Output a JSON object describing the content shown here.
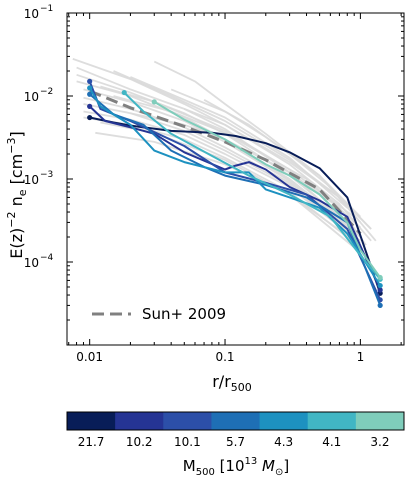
{
  "chart_data": {
    "type": "line",
    "xlabel": {
      "base": "r/r",
      "sub": "500"
    },
    "ylabel": {
      "pre": "E(z)",
      "sup1": "−2",
      "mid": " n",
      "sub": "e",
      "post": " [cm",
      "sup2": "−3",
      "end": "]"
    },
    "xscale": "log",
    "yscale": "log",
    "xlim": [
      0.0068,
      2.1
    ],
    "ylim": [
      1e-05,
      0.1
    ],
    "xticks": [
      {
        "value": 0.01,
        "label": "0.01"
      },
      {
        "value": 0.1,
        "label": "0.1"
      },
      {
        "value": 1,
        "label": "1"
      }
    ],
    "yticks": [
      {
        "value": 0.0001,
        "mant": "10",
        "exp": "−4"
      },
      {
        "value": 0.001,
        "mant": "10",
        "exp": "−3"
      },
      {
        "value": 0.01,
        "mant": "10",
        "exp": "−2"
      },
      {
        "value": 0.1,
        "mant": "10",
        "exp": "−1"
      }
    ],
    "legend": {
      "position": "lower-left",
      "entries": [
        {
          "label": "Sun+ 2009",
          "style": "dashed",
          "color": "#808080"
        }
      ]
    },
    "reference_profile": {
      "name": "Sun+ 2009",
      "color": "#808080",
      "points": [
        [
          0.01,
          0.0115
        ],
        [
          0.02,
          0.0072
        ],
        [
          0.05,
          0.0043
        ],
        [
          0.1,
          0.0028
        ],
        [
          0.2,
          0.0017
        ],
        [
          0.5,
          0.00075
        ],
        [
          1.0,
          0.00022
        ]
      ]
    },
    "background_profiles": {
      "color": "#d9d9d9",
      "profiles": [
        [
          [
            0.0075,
            0.028
          ],
          [
            0.02,
            0.016
          ],
          [
            0.05,
            0.008
          ],
          [
            0.1,
            0.0045
          ],
          [
            0.3,
            0.0015
          ],
          [
            0.7,
            0.0005
          ],
          [
            1.2,
            0.00018
          ]
        ],
        [
          [
            0.008,
            0.022
          ],
          [
            0.02,
            0.012
          ],
          [
            0.05,
            0.007
          ],
          [
            0.1,
            0.004
          ],
          [
            0.3,
            0.0012
          ],
          [
            0.7,
            0.00045
          ],
          [
            1.1,
            0.00016
          ]
        ],
        [
          [
            0.008,
            0.018
          ],
          [
            0.02,
            0.011
          ],
          [
            0.05,
            0.0062
          ],
          [
            0.1,
            0.0035
          ],
          [
            0.3,
            0.0011
          ],
          [
            0.8,
            0.0003
          ]
        ],
        [
          [
            0.008,
            0.015
          ],
          [
            0.02,
            0.01
          ],
          [
            0.05,
            0.0055
          ],
          [
            0.1,
            0.003
          ],
          [
            0.3,
            0.001
          ],
          [
            0.8,
            0.00028
          ]
        ],
        [
          [
            0.009,
            0.012
          ],
          [
            0.02,
            0.0085
          ],
          [
            0.05,
            0.005
          ],
          [
            0.1,
            0.0028
          ],
          [
            0.3,
            0.00095
          ],
          [
            0.9,
            0.00022
          ]
        ],
        [
          [
            0.009,
            0.0095
          ],
          [
            0.02,
            0.007
          ],
          [
            0.05,
            0.0042
          ],
          [
            0.1,
            0.0024
          ],
          [
            0.3,
            0.0009
          ],
          [
            0.9,
            0.00023
          ]
        ],
        [
          [
            0.009,
            0.008
          ],
          [
            0.02,
            0.0062
          ],
          [
            0.05,
            0.0038
          ],
          [
            0.1,
            0.0022
          ],
          [
            0.3,
            0.00085
          ],
          [
            1.0,
            0.00018
          ]
        ],
        [
          [
            0.009,
            0.0065
          ],
          [
            0.02,
            0.0052
          ],
          [
            0.05,
            0.0034
          ],
          [
            0.1,
            0.002
          ],
          [
            0.3,
            0.0008
          ],
          [
            1.0,
            0.00017
          ]
        ],
        [
          [
            0.009,
            0.0055
          ],
          [
            0.02,
            0.0045
          ],
          [
            0.05,
            0.003
          ],
          [
            0.1,
            0.0018
          ],
          [
            0.3,
            0.0007
          ],
          [
            1.0,
            0.00015
          ]
        ],
        [
          [
            0.012,
            0.0048
          ],
          [
            0.03,
            0.0036
          ],
          [
            0.1,
            0.0017
          ],
          [
            0.3,
            0.00065
          ],
          [
            1.0,
            0.00013
          ]
        ],
        [
          [
            0.015,
            0.02
          ],
          [
            0.04,
            0.01
          ],
          [
            0.1,
            0.005
          ],
          [
            0.3,
            0.0017
          ],
          [
            0.7,
            0.0006
          ],
          [
            1.2,
            0.00025
          ]
        ],
        [
          [
            0.03,
            0.026
          ],
          [
            0.06,
            0.015
          ],
          [
            0.1,
            0.008
          ],
          [
            0.2,
            0.0035
          ],
          [
            0.5,
            0.0011
          ],
          [
            1.0,
            0.00035
          ]
        ],
        [
          [
            0.02,
            0.017
          ],
          [
            0.05,
            0.009
          ],
          [
            0.1,
            0.0055
          ],
          [
            0.3,
            0.0018
          ],
          [
            0.8,
            0.00045
          ]
        ],
        [
          [
            0.012,
            0.013
          ],
          [
            0.03,
            0.0085
          ],
          [
            0.1,
            0.0038
          ],
          [
            0.3,
            0.0013
          ],
          [
            0.9,
            0.00035
          ]
        ],
        [
          [
            0.011,
            0.0036
          ],
          [
            0.03,
            0.0028
          ],
          [
            0.1,
            0.0015
          ],
          [
            0.3,
            0.00065
          ],
          [
            1.0,
            0.00016
          ]
        ],
        [
          [
            0.02,
            0.0062
          ],
          [
            0.05,
            0.0045
          ],
          [
            0.1,
            0.003
          ],
          [
            0.3,
            0.0012
          ],
          [
            1.0,
            0.0002
          ]
        ],
        [
          [
            0.04,
            0.012
          ],
          [
            0.1,
            0.0065
          ],
          [
            0.2,
            0.0032
          ],
          [
            0.5,
            0.0011
          ],
          [
            1.0,
            0.0003
          ]
        ],
        [
          [
            0.05,
            0.007
          ],
          [
            0.1,
            0.0045
          ],
          [
            0.3,
            0.0016
          ],
          [
            0.7,
            0.0006
          ],
          [
            1.3,
            0.00018
          ]
        ],
        [
          [
            0.07,
            0.009
          ],
          [
            0.15,
            0.0045
          ],
          [
            0.3,
            0.002
          ],
          [
            0.6,
            0.0008
          ],
          [
            1.2,
            0.00025
          ]
        ],
        [
          [
            0.015,
            0.01
          ],
          [
            0.04,
            0.0065
          ],
          [
            0.1,
            0.0036
          ],
          [
            0.4,
            0.001
          ],
          [
            1.0,
            0.00026
          ]
        ]
      ]
    },
    "series": [
      {
        "name": "21.7",
        "color": "#081d58",
        "points": [
          [
            0.01,
            0.0055
          ],
          [
            0.015,
            0.0048
          ],
          [
            0.02,
            0.0044
          ],
          [
            0.04,
            0.0038
          ],
          [
            0.08,
            0.0036
          ],
          [
            0.12,
            0.0033
          ],
          [
            0.2,
            0.0027
          ],
          [
            0.3,
            0.0021
          ],
          [
            0.5,
            0.00135
          ],
          [
            0.8,
            0.0006
          ],
          [
            1.4,
            4.2e-05
          ]
        ]
      },
      {
        "name": "10.2",
        "color": "#253494",
        "points": [
          [
            0.01,
            0.0075
          ],
          [
            0.013,
            0.005
          ],
          [
            0.02,
            0.0042
          ],
          [
            0.03,
            0.0035
          ],
          [
            0.05,
            0.0021
          ],
          [
            0.1,
            0.0013
          ],
          [
            0.12,
            0.00145
          ],
          [
            0.15,
            0.0016
          ],
          [
            0.2,
            0.0013
          ],
          [
            0.3,
            0.0008
          ],
          [
            0.5,
            0.00055
          ],
          [
            0.8,
            0.00035
          ],
          [
            1.4,
            4.6e-05
          ]
        ]
      },
      {
        "name": "10.1",
        "color": "#2c4fa8",
        "points": [
          [
            0.01,
            0.015
          ],
          [
            0.012,
            0.007
          ],
          [
            0.02,
            0.005
          ],
          [
            0.05,
            0.0025
          ],
          [
            0.1,
            0.0012
          ],
          [
            0.2,
            0.0009
          ],
          [
            0.4,
            0.00065
          ],
          [
            0.8,
            0.00025
          ],
          [
            1.4,
            3.5e-05
          ]
        ]
      },
      {
        "name": "5.7",
        "color": "#1e6fb5",
        "points": [
          [
            0.01,
            0.0105
          ],
          [
            0.015,
            0.006
          ],
          [
            0.025,
            0.0045
          ],
          [
            0.04,
            0.0022
          ],
          [
            0.07,
            0.0014
          ],
          [
            0.1,
            0.0011
          ],
          [
            0.2,
            0.00085
          ],
          [
            0.4,
            0.0006
          ],
          [
            0.8,
            0.0003
          ],
          [
            1.4,
            3e-05
          ]
        ]
      },
      {
        "name": "4.3",
        "color": "#1d91c0",
        "points": [
          [
            0.01,
            0.0125
          ],
          [
            0.012,
            0.0075
          ],
          [
            0.02,
            0.0045
          ],
          [
            0.03,
            0.0022
          ],
          [
            0.05,
            0.0016
          ],
          [
            0.1,
            0.0012
          ],
          [
            0.15,
            0.0012
          ],
          [
            0.2,
            0.00075
          ],
          [
            0.3,
            0.0006
          ],
          [
            0.5,
            0.00045
          ],
          [
            0.8,
            0.00022
          ],
          [
            1.4,
            5.2e-05
          ]
        ]
      },
      {
        "name": "4.1",
        "color": "#41b6c4",
        "points": [
          [
            0.018,
            0.011
          ],
          [
            0.025,
            0.0065
          ],
          [
            0.04,
            0.0035
          ],
          [
            0.08,
            0.0019
          ],
          [
            0.15,
            0.0011
          ],
          [
            0.3,
            0.00065
          ],
          [
            0.6,
            0.00035
          ],
          [
            1.0,
            0.00012
          ],
          [
            1.4,
            6.2e-05
          ]
        ]
      },
      {
        "name": "3.2",
        "color": "#7fcdbb",
        "points": [
          [
            0.03,
            0.0085
          ],
          [
            0.05,
            0.0052
          ],
          [
            0.1,
            0.003
          ],
          [
            0.2,
            0.0015
          ],
          [
            0.3,
            0.0011
          ],
          [
            0.5,
            0.00065
          ],
          [
            0.8,
            0.0003
          ],
          [
            1.0,
            0.00014
          ],
          [
            1.4,
            6.5e-05
          ]
        ]
      }
    ],
    "colorbar": {
      "label": {
        "base": "M",
        "sub": "500",
        "open": " [10",
        "sup": "13",
        "unit": " M",
        "unit_sub": "⊙",
        "close": "]"
      },
      "bins": [
        {
          "label": "21.7",
          "color": "#081d58"
        },
        {
          "label": "10.2",
          "color": "#253494"
        },
        {
          "label": "10.1",
          "color": "#2c4fa8"
        },
        {
          "label": "5.7",
          "color": "#1e6fb5"
        },
        {
          "label": "4.3",
          "color": "#1d91c0"
        },
        {
          "label": "4.1",
          "color": "#41b6c4"
        },
        {
          "label": "3.2",
          "color": "#7fcdbb"
        }
      ]
    }
  }
}
